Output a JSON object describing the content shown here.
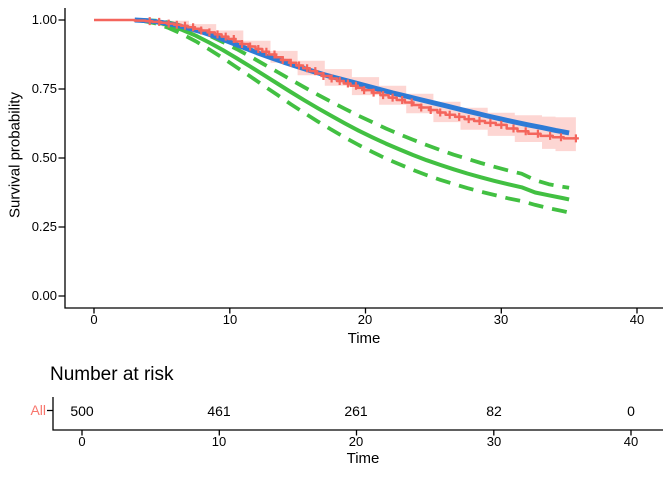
{
  "colors": {
    "km_line": "#F4655C",
    "km_text": "#F8766D",
    "km_ribbon": "rgba(248,118,109,0.30)",
    "smooth_line": "#2E7BD6",
    "parametric_line": "#42C042",
    "axis": "#000000"
  },
  "chart_data": {
    "type": "line",
    "title": "",
    "xlabel": "Time",
    "ylabel": "Survival probability",
    "xlim": [
      0,
      40
    ],
    "ylim": [
      0,
      1
    ],
    "grid": false,
    "legend": "none",
    "xticks": [
      "0",
      "10",
      "20",
      "30",
      "40"
    ],
    "yticks": [
      "1.00",
      "0.75",
      "0.50",
      "0.25",
      "0.00"
    ],
    "series": [
      {
        "name": "km-confidence-ribbon",
        "type": "ribbon-step",
        "fill": "rgba(248,118,109,0.30)",
        "upper": [
          [
            3.5,
            1.0
          ],
          [
            5,
            0.997
          ],
          [
            7,
            0.985
          ],
          [
            9,
            0.962
          ],
          [
            11,
            0.925
          ],
          [
            13,
            0.888
          ],
          [
            15,
            0.852
          ],
          [
            17,
            0.822
          ],
          [
            19,
            0.793
          ],
          [
            21,
            0.762
          ],
          [
            23,
            0.733
          ],
          [
            25,
            0.704
          ],
          [
            27,
            0.682
          ],
          [
            29,
            0.664
          ],
          [
            31,
            0.655
          ],
          [
            33,
            0.65
          ],
          [
            34,
            0.648
          ],
          [
            35.5,
            0.648
          ]
        ],
        "lower": [
          [
            3.5,
            0.993
          ],
          [
            5,
            0.976
          ],
          [
            7,
            0.952
          ],
          [
            9,
            0.924
          ],
          [
            11,
            0.888
          ],
          [
            13,
            0.845
          ],
          [
            15,
            0.8
          ],
          [
            17,
            0.762
          ],
          [
            19,
            0.728
          ],
          [
            21,
            0.693
          ],
          [
            23,
            0.662
          ],
          [
            25,
            0.63
          ],
          [
            27,
            0.602
          ],
          [
            29,
            0.58
          ],
          [
            31,
            0.558
          ],
          [
            33,
            0.533
          ],
          [
            34,
            0.525
          ],
          [
            35.5,
            0.525
          ]
        ]
      },
      {
        "name": "parametric-ci-upper",
        "type": "line",
        "color": "#42C042",
        "width": 3.8,
        "dash": "15 9",
        "points": [
          [
            3.5,
            1.0
          ],
          [
            4.5,
            0.998
          ],
          [
            5.5,
            0.991
          ],
          [
            6.5,
            0.979
          ],
          [
            7.5,
            0.963
          ],
          [
            8.5,
            0.943
          ],
          [
            9.5,
            0.92
          ],
          [
            10.5,
            0.895
          ],
          [
            11.5,
            0.868
          ],
          [
            12.5,
            0.84
          ],
          [
            13.5,
            0.812
          ],
          [
            14.5,
            0.784
          ],
          [
            15.5,
            0.756
          ],
          [
            16.5,
            0.729
          ],
          [
            17.5,
            0.703
          ],
          [
            18.5,
            0.678
          ],
          [
            19.5,
            0.653
          ],
          [
            20.5,
            0.63
          ],
          [
            21.5,
            0.607
          ],
          [
            22.5,
            0.586
          ],
          [
            23.5,
            0.566
          ],
          [
            24.5,
            0.547
          ],
          [
            25.5,
            0.529
          ],
          [
            26.5,
            0.512
          ],
          [
            27.5,
            0.497
          ],
          [
            28.5,
            0.482
          ],
          [
            29.5,
            0.468
          ],
          [
            30.5,
            0.455
          ],
          [
            31.5,
            0.443
          ],
          [
            32.5,
            0.42
          ],
          [
            33.5,
            0.405
          ],
          [
            34.5,
            0.396
          ],
          [
            35,
            0.392
          ]
        ]
      },
      {
        "name": "parametric-ci-lower",
        "type": "line",
        "color": "#42C042",
        "width": 3.8,
        "dash": "15 9",
        "points": [
          [
            3.5,
            0.998
          ],
          [
            4.5,
            0.988
          ],
          [
            5.5,
            0.971
          ],
          [
            6.5,
            0.949
          ],
          [
            7.5,
            0.923
          ],
          [
            8.5,
            0.893
          ],
          [
            9.5,
            0.862
          ],
          [
            10.5,
            0.829
          ],
          [
            11.5,
            0.796
          ],
          [
            12.5,
            0.762
          ],
          [
            13.5,
            0.729
          ],
          [
            14.5,
            0.695
          ],
          [
            15.5,
            0.663
          ],
          [
            16.5,
            0.632
          ],
          [
            17.5,
            0.602
          ],
          [
            18.5,
            0.574
          ],
          [
            19.5,
            0.547
          ],
          [
            20.5,
            0.522
          ],
          [
            21.5,
            0.498
          ],
          [
            22.5,
            0.477
          ],
          [
            23.5,
            0.457
          ],
          [
            24.5,
            0.438
          ],
          [
            25.5,
            0.421
          ],
          [
            26.5,
            0.406
          ],
          [
            27.5,
            0.391
          ],
          [
            28.5,
            0.378
          ],
          [
            29.5,
            0.366
          ],
          [
            30.5,
            0.354
          ],
          [
            31.5,
            0.344
          ],
          [
            32.5,
            0.33
          ],
          [
            33.5,
            0.318
          ],
          [
            34.5,
            0.308
          ],
          [
            35,
            0.302
          ]
        ]
      },
      {
        "name": "parametric-fit",
        "type": "line",
        "color": "#42C042",
        "width": 4,
        "points": [
          [
            3.5,
            1.0
          ],
          [
            4.5,
            0.993
          ],
          [
            5.5,
            0.981
          ],
          [
            6.5,
            0.964
          ],
          [
            7.5,
            0.943
          ],
          [
            8.5,
            0.918
          ],
          [
            9.5,
            0.891
          ],
          [
            10.5,
            0.862
          ],
          [
            11.5,
            0.832
          ],
          [
            12.5,
            0.801
          ],
          [
            13.5,
            0.77
          ],
          [
            14.5,
            0.739
          ],
          [
            15.5,
            0.709
          ],
          [
            16.5,
            0.68
          ],
          [
            17.5,
            0.652
          ],
          [
            18.5,
            0.625
          ],
          [
            19.5,
            0.599
          ],
          [
            20.5,
            0.575
          ],
          [
            21.5,
            0.552
          ],
          [
            22.5,
            0.531
          ],
          [
            23.5,
            0.511
          ],
          [
            24.5,
            0.492
          ],
          [
            25.5,
            0.475
          ],
          [
            26.5,
            0.459
          ],
          [
            27.5,
            0.444
          ],
          [
            28.5,
            0.43
          ],
          [
            29.5,
            0.417
          ],
          [
            30.5,
            0.405
          ],
          [
            31.5,
            0.394
          ],
          [
            32.5,
            0.375
          ],
          [
            33.5,
            0.365
          ],
          [
            34.5,
            0.355
          ],
          [
            35,
            0.35
          ]
        ]
      },
      {
        "name": "smooth-fit",
        "type": "line",
        "color": "#2E7BD6",
        "width": 5,
        "points": [
          [
            3,
            1.0
          ],
          [
            4,
            0.997
          ],
          [
            5,
            0.991
          ],
          [
            6,
            0.982
          ],
          [
            7,
            0.97
          ],
          [
            8,
            0.956
          ],
          [
            9,
            0.939
          ],
          [
            10,
            0.92
          ],
          [
            11,
            0.901
          ],
          [
            12,
            0.882
          ],
          [
            13,
            0.864
          ],
          [
            14,
            0.847
          ],
          [
            15,
            0.831
          ],
          [
            16,
            0.816
          ],
          [
            17,
            0.801
          ],
          [
            18,
            0.788
          ],
          [
            19,
            0.775
          ],
          [
            20,
            0.762
          ],
          [
            21,
            0.749
          ],
          [
            22,
            0.736
          ],
          [
            23,
            0.724
          ],
          [
            24,
            0.712
          ],
          [
            25,
            0.7
          ],
          [
            26,
            0.688
          ],
          [
            27,
            0.676
          ],
          [
            28,
            0.664
          ],
          [
            29,
            0.652
          ],
          [
            30,
            0.641
          ],
          [
            31,
            0.63
          ],
          [
            32,
            0.62
          ],
          [
            33,
            0.61
          ],
          [
            34,
            0.6
          ],
          [
            35,
            0.591
          ]
        ]
      },
      {
        "name": "kaplan-meier-estimate",
        "type": "step",
        "color": "#F4655C",
        "width": 2.5,
        "points": [
          [
            0,
            1.0
          ],
          [
            3.0,
            0.998
          ],
          [
            3.8,
            0.996
          ],
          [
            4.3,
            0.993
          ],
          [
            4.9,
            0.99
          ],
          [
            5.4,
            0.987
          ],
          [
            5.9,
            0.983
          ],
          [
            6.4,
            0.979
          ],
          [
            6.9,
            0.974
          ],
          [
            7.4,
            0.968
          ],
          [
            7.9,
            0.962
          ],
          [
            8.4,
            0.955
          ],
          [
            8.9,
            0.948
          ],
          [
            9.4,
            0.94
          ],
          [
            9.9,
            0.931
          ],
          [
            10.4,
            0.922
          ],
          [
            10.9,
            0.913
          ],
          [
            11.4,
            0.904
          ],
          [
            11.9,
            0.895
          ],
          [
            12.4,
            0.885
          ],
          [
            12.9,
            0.875
          ],
          [
            13.4,
            0.865
          ],
          [
            13.9,
            0.855
          ],
          [
            14.4,
            0.845
          ],
          [
            14.9,
            0.835
          ],
          [
            15.4,
            0.825
          ],
          [
            15.9,
            0.815
          ],
          [
            16.4,
            0.806
          ],
          [
            16.9,
            0.797
          ],
          [
            17.4,
            0.788
          ],
          [
            17.9,
            0.779
          ],
          [
            18.4,
            0.77
          ],
          [
            18.9,
            0.762
          ],
          [
            19.4,
            0.754
          ],
          [
            19.9,
            0.746
          ],
          [
            20.5,
            0.737
          ],
          [
            21.1,
            0.728
          ],
          [
            21.7,
            0.719
          ],
          [
            22.3,
            0.71
          ],
          [
            22.9,
            0.701
          ],
          [
            23.5,
            0.692
          ],
          [
            24.1,
            0.683
          ],
          [
            24.7,
            0.674
          ],
          [
            25.3,
            0.665
          ],
          [
            25.9,
            0.657
          ],
          [
            26.6,
            0.649
          ],
          [
            27.3,
            0.641
          ],
          [
            28.0,
            0.634
          ],
          [
            28.8,
            0.627
          ],
          [
            29.6,
            0.62
          ],
          [
            30.4,
            0.607
          ],
          [
            31.2,
            0.597
          ],
          [
            32.0,
            0.588
          ],
          [
            32.9,
            0.58
          ],
          [
            33.8,
            0.575
          ],
          [
            34.6,
            0.571
          ],
          [
            35.5,
            0.571
          ]
        ]
      }
    ],
    "censor_times": [
      4.1,
      4.8,
      5.5,
      6.1,
      6.7,
      7.3,
      7.9,
      8.5,
      9.1,
      9.7,
      10.3,
      10.9,
      11.5,
      12.1,
      12.7,
      13.3,
      13.9,
      14.5,
      15.1,
      15.7,
      16.3,
      16.9,
      17.5,
      18.1,
      18.7,
      19.3,
      19.9,
      20.6,
      21.3,
      22.0,
      22.7,
      23.4,
      24.1,
      24.8,
      25.5,
      26.2,
      26.9,
      27.6,
      28.4,
      29.2,
      30.0,
      30.9,
      31.8,
      32.7,
      33.6,
      34.4,
      35.5
    ],
    "risk_table": {
      "title": "Number at risk",
      "group": "All",
      "times": [
        "0",
        "10",
        "20",
        "30",
        "40"
      ],
      "counts": [
        "500",
        "461",
        "261",
        "82",
        "0"
      ],
      "xlabel": "Time"
    }
  }
}
